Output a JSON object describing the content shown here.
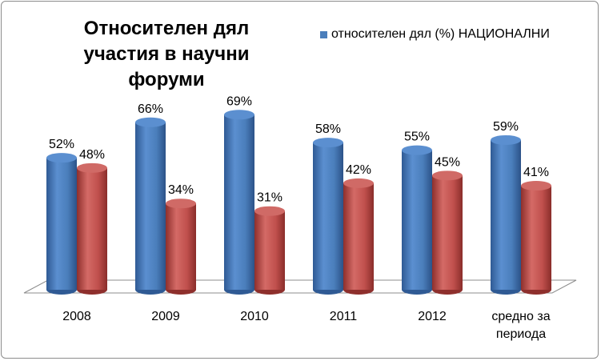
{
  "title_lines": [
    "Относителен дял",
    "участия в научни форуми"
  ],
  "legend": {
    "label": "относителен дял (%) НАЦИОНАЛНИ",
    "color": "#4a7ebb"
  },
  "colors": {
    "blue": "#4a7ebb",
    "red": "#c0504d"
  },
  "chart_data": {
    "type": "bar",
    "title": "Относителен дял участия в научни форуми",
    "categories": [
      [
        "2008"
      ],
      [
        "2009"
      ],
      [
        "2010"
      ],
      [
        "2011"
      ],
      [
        "2012"
      ],
      [
        "средно за",
        "периода"
      ]
    ],
    "series": [
      {
        "name": "относителен дял (%) НАЦИОНАЛНИ",
        "values": [
          52,
          66,
          69,
          58,
          55,
          59
        ],
        "labels": [
          "52%",
          "66%",
          "69%",
          "58%",
          "55%",
          "59%"
        ]
      },
      {
        "values": [
          48,
          34,
          31,
          42,
          45,
          41
        ],
        "labels": [
          "48%",
          "34%",
          "31%",
          "42%",
          "45%",
          "41%"
        ]
      }
    ],
    "ylim": [
      0,
      100
    ],
    "grid": false,
    "legend_position": "top-right"
  }
}
